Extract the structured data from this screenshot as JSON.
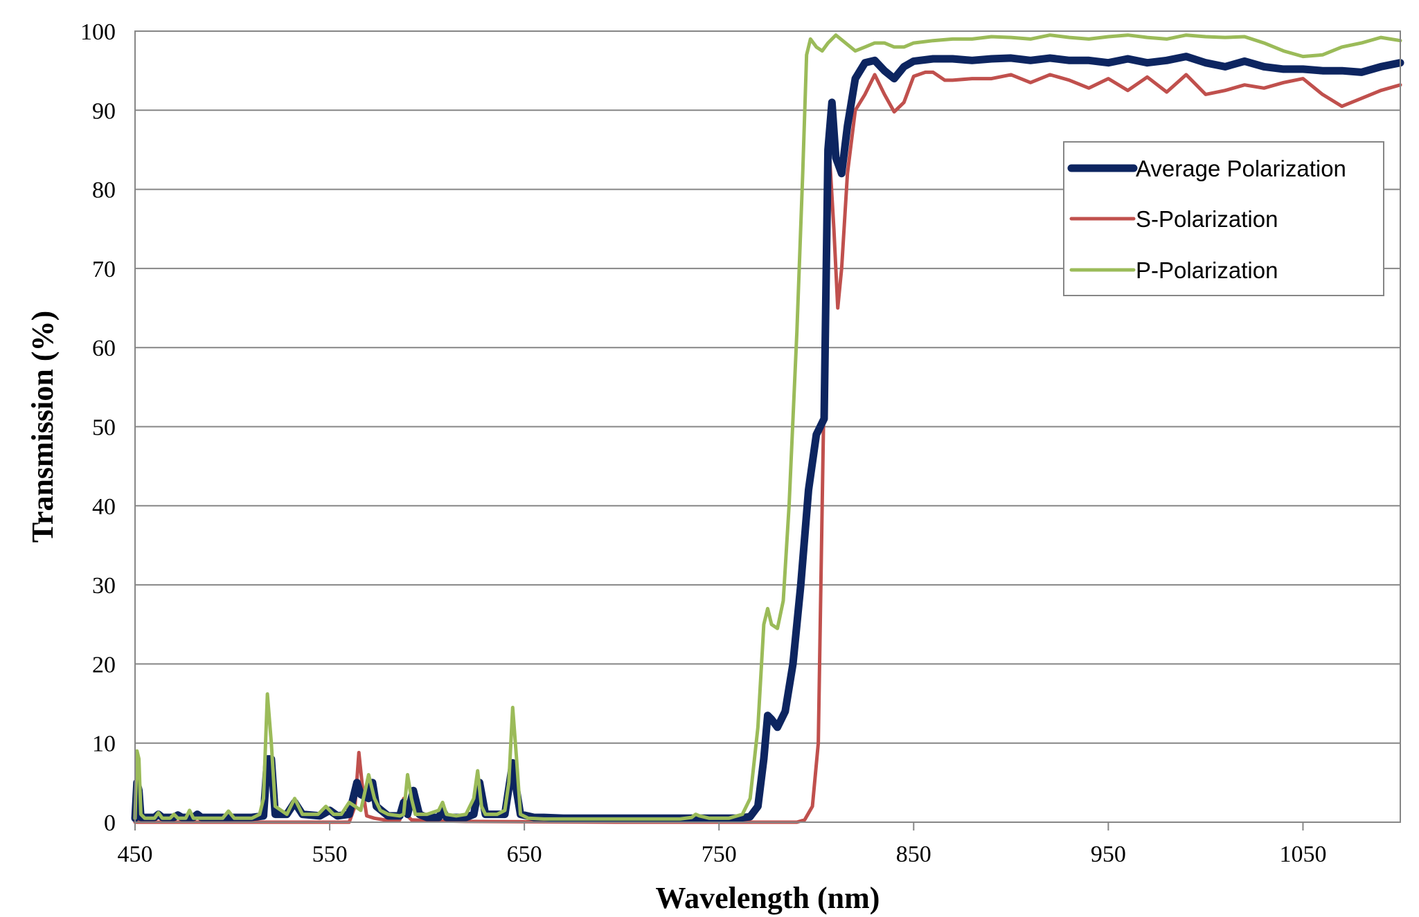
{
  "chart_data": {
    "type": "line",
    "title": "",
    "xlabel": "Wavelength (nm)",
    "ylabel": "Transmission (%)",
    "xlim": [
      450,
      1100
    ],
    "ylim": [
      0,
      100
    ],
    "xticks": [
      450,
      550,
      650,
      750,
      850,
      950,
      1050
    ],
    "yticks": [
      0,
      10,
      20,
      30,
      40,
      50,
      60,
      70,
      80,
      90,
      100
    ],
    "grid": "horizontal",
    "legend_position": "top-right",
    "series": [
      {
        "name": "Average Polarization",
        "color": "#0d2560",
        "points": [
          [
            450,
            0.5
          ],
          [
            451,
            5
          ],
          [
            452,
            4
          ],
          [
            453,
            0.6
          ],
          [
            460,
            0.6
          ],
          [
            462,
            1
          ],
          [
            464,
            0.6
          ],
          [
            470,
            0.6
          ],
          [
            472,
            0.9
          ],
          [
            474,
            0.6
          ],
          [
            480,
            0.6
          ],
          [
            482,
            1
          ],
          [
            484,
            0.6
          ],
          [
            500,
            0.6
          ],
          [
            510,
            0.6
          ],
          [
            516,
            0.8
          ],
          [
            518,
            8
          ],
          [
            520,
            8
          ],
          [
            522,
            1
          ],
          [
            528,
            1
          ],
          [
            532,
            2.5
          ],
          [
            536,
            1
          ],
          [
            545,
            0.8
          ],
          [
            550,
            1.5
          ],
          [
            554,
            0.8
          ],
          [
            560,
            1
          ],
          [
            564,
            5
          ],
          [
            566,
            3.5
          ],
          [
            570,
            3
          ],
          [
            572,
            5
          ],
          [
            574,
            2
          ],
          [
            580,
            0.8
          ],
          [
            586,
            0.8
          ],
          [
            588,
            2.5
          ],
          [
            590,
            1
          ],
          [
            593,
            4
          ],
          [
            596,
            1
          ],
          [
            600,
            0.6
          ],
          [
            606,
            0.6
          ],
          [
            608,
            1.5
          ],
          [
            610,
            0.6
          ],
          [
            620,
            0.6
          ],
          [
            624,
            1
          ],
          [
            627,
            5
          ],
          [
            630,
            1
          ],
          [
            640,
            1
          ],
          [
            644,
            7.5
          ],
          [
            646,
            4
          ],
          [
            648,
            1
          ],
          [
            655,
            0.6
          ],
          [
            660,
            0.6
          ],
          [
            670,
            0.5
          ],
          [
            700,
            0.5
          ],
          [
            740,
            0.5
          ],
          [
            760,
            0.5
          ],
          [
            766,
            0.7
          ],
          [
            770,
            2
          ],
          [
            773,
            8
          ],
          [
            775,
            13.5
          ],
          [
            777,
            13
          ],
          [
            780,
            12
          ],
          [
            784,
            14
          ],
          [
            788,
            20
          ],
          [
            792,
            30
          ],
          [
            796,
            42
          ],
          [
            800,
            49
          ],
          [
            804,
            51
          ],
          [
            806,
            85
          ],
          [
            808,
            91
          ],
          [
            810,
            84
          ],
          [
            813,
            82
          ],
          [
            816,
            88
          ],
          [
            820,
            94
          ],
          [
            825,
            96
          ],
          [
            830,
            96.3
          ],
          [
            835,
            95
          ],
          [
            840,
            94
          ],
          [
            845,
            95.5
          ],
          [
            850,
            96.2
          ],
          [
            860,
            96.5
          ],
          [
            870,
            96.5
          ],
          [
            880,
            96.3
          ],
          [
            890,
            96.5
          ],
          [
            900,
            96.6
          ],
          [
            910,
            96.3
          ],
          [
            920,
            96.6
          ],
          [
            930,
            96.3
          ],
          [
            940,
            96.3
          ],
          [
            950,
            96
          ],
          [
            960,
            96.5
          ],
          [
            970,
            96
          ],
          [
            980,
            96.3
          ],
          [
            990,
            96.8
          ],
          [
            1000,
            96
          ],
          [
            1010,
            95.5
          ],
          [
            1020,
            96.2
          ],
          [
            1030,
            95.5
          ],
          [
            1040,
            95.2
          ],
          [
            1050,
            95.2
          ],
          [
            1060,
            95
          ],
          [
            1070,
            95
          ],
          [
            1080,
            94.8
          ],
          [
            1090,
            95.5
          ],
          [
            1100,
            96
          ]
        ]
      },
      {
        "name": "S-Polarization",
        "color": "#c0504d",
        "points": [
          [
            450,
            0
          ],
          [
            560,
            0
          ],
          [
            563,
            2
          ],
          [
            565,
            8.8
          ],
          [
            567,
            4
          ],
          [
            569,
            0.8
          ],
          [
            573,
            0.5
          ],
          [
            578,
            0.3
          ],
          [
            586,
            0.3
          ],
          [
            588,
            3
          ],
          [
            590,
            0.8
          ],
          [
            592,
            0.3
          ],
          [
            600,
            0.2
          ],
          [
            620,
            0.1
          ],
          [
            700,
            0
          ],
          [
            790,
            0
          ],
          [
            794,
            0.3
          ],
          [
            798,
            2
          ],
          [
            801,
            10
          ],
          [
            803,
            40
          ],
          [
            805,
            70
          ],
          [
            807,
            83.5
          ],
          [
            809,
            75
          ],
          [
            811,
            65
          ],
          [
            813,
            70
          ],
          [
            816,
            82
          ],
          [
            820,
            90
          ],
          [
            825,
            92
          ],
          [
            830,
            94.5
          ],
          [
            835,
            92
          ],
          [
            840,
            89.8
          ],
          [
            845,
            91
          ],
          [
            850,
            94.3
          ],
          [
            856,
            94.8
          ],
          [
            860,
            94.8
          ],
          [
            866,
            93.8
          ],
          [
            870,
            93.8
          ],
          [
            880,
            94
          ],
          [
            890,
            94
          ],
          [
            900,
            94.5
          ],
          [
            910,
            93.5
          ],
          [
            920,
            94.5
          ],
          [
            930,
            93.8
          ],
          [
            940,
            92.8
          ],
          [
            950,
            94
          ],
          [
            960,
            92.5
          ],
          [
            970,
            94.2
          ],
          [
            980,
            92.3
          ],
          [
            990,
            94.5
          ],
          [
            1000,
            92
          ],
          [
            1010,
            92.5
          ],
          [
            1020,
            93.2
          ],
          [
            1030,
            92.8
          ],
          [
            1040,
            93.5
          ],
          [
            1050,
            94
          ],
          [
            1060,
            92
          ],
          [
            1070,
            90.5
          ],
          [
            1080,
            91.5
          ],
          [
            1090,
            92.5
          ],
          [
            1100,
            93.2
          ]
        ]
      },
      {
        "name": "P-Polarization",
        "color": "#9bbb59",
        "points": [
          [
            450,
            0.5
          ],
          [
            451,
            9
          ],
          [
            452,
            8
          ],
          [
            453,
            1
          ],
          [
            455,
            0.5
          ],
          [
            460,
            0.5
          ],
          [
            462,
            1.2
          ],
          [
            464,
            0.5
          ],
          [
            468,
            0.5
          ],
          [
            470,
            1
          ],
          [
            472,
            0.5
          ],
          [
            476,
            0.5
          ],
          [
            478,
            1.5
          ],
          [
            480,
            0.5
          ],
          [
            495,
            0.5
          ],
          [
            498,
            1.4
          ],
          [
            501,
            0.5
          ],
          [
            510,
            0.5
          ],
          [
            514,
            1
          ],
          [
            516,
            3
          ],
          [
            518,
            16.2
          ],
          [
            520,
            10
          ],
          [
            522,
            2
          ],
          [
            528,
            1
          ],
          [
            532,
            3
          ],
          [
            536,
            1
          ],
          [
            544,
            1
          ],
          [
            548,
            2
          ],
          [
            552,
            1
          ],
          [
            556,
            1
          ],
          [
            560,
            2.5
          ],
          [
            563,
            2
          ],
          [
            566,
            1.5
          ],
          [
            570,
            6
          ],
          [
            573,
            3
          ],
          [
            576,
            1.5
          ],
          [
            580,
            1
          ],
          [
            586,
            0.8
          ],
          [
            588,
            1
          ],
          [
            590,
            6
          ],
          [
            592,
            3
          ],
          [
            594,
            1
          ],
          [
            600,
            1
          ],
          [
            606,
            1.5
          ],
          [
            608,
            2.5
          ],
          [
            610,
            1
          ],
          [
            615,
            0.8
          ],
          [
            620,
            1
          ],
          [
            624,
            3
          ],
          [
            626,
            6.5
          ],
          [
            628,
            2
          ],
          [
            630,
            1
          ],
          [
            636,
            1
          ],
          [
            640,
            1.5
          ],
          [
            642,
            5
          ],
          [
            644,
            14.5
          ],
          [
            646,
            8
          ],
          [
            648,
            1
          ],
          [
            652,
            0.5
          ],
          [
            660,
            0.4
          ],
          [
            670,
            0.4
          ],
          [
            700,
            0.4
          ],
          [
            730,
            0.4
          ],
          [
            736,
            0.6
          ],
          [
            738,
            1
          ],
          [
            740,
            0.8
          ],
          [
            745,
            0.5
          ],
          [
            755,
            0.5
          ],
          [
            762,
            1
          ],
          [
            766,
            3
          ],
          [
            770,
            12
          ],
          [
            773,
            25
          ],
          [
            775,
            27
          ],
          [
            777,
            25
          ],
          [
            780,
            24.5
          ],
          [
            783,
            28
          ],
          [
            786,
            40
          ],
          [
            790,
            62
          ],
          [
            793,
            82
          ],
          [
            795,
            97
          ],
          [
            797,
            99
          ],
          [
            800,
            98
          ],
          [
            803,
            97.5
          ],
          [
            806,
            98.5
          ],
          [
            810,
            99.5
          ],
          [
            815,
            98.5
          ],
          [
            820,
            97.5
          ],
          [
            825,
            98
          ],
          [
            830,
            98.5
          ],
          [
            835,
            98.5
          ],
          [
            840,
            98
          ],
          [
            845,
            98
          ],
          [
            850,
            98.5
          ],
          [
            860,
            98.8
          ],
          [
            870,
            99
          ],
          [
            880,
            99
          ],
          [
            890,
            99.3
          ],
          [
            900,
            99.2
          ],
          [
            910,
            99
          ],
          [
            920,
            99.5
          ],
          [
            930,
            99.2
          ],
          [
            940,
            99
          ],
          [
            950,
            99.3
          ],
          [
            960,
            99.5
          ],
          [
            970,
            99.2
          ],
          [
            980,
            99
          ],
          [
            990,
            99.5
          ],
          [
            1000,
            99.3
          ],
          [
            1010,
            99.2
          ],
          [
            1020,
            99.3
          ],
          [
            1030,
            98.5
          ],
          [
            1040,
            97.5
          ],
          [
            1050,
            96.8
          ],
          [
            1060,
            97
          ],
          [
            1070,
            98
          ],
          [
            1080,
            98.5
          ],
          [
            1090,
            99.2
          ],
          [
            1100,
            98.8
          ]
        ]
      }
    ]
  }
}
